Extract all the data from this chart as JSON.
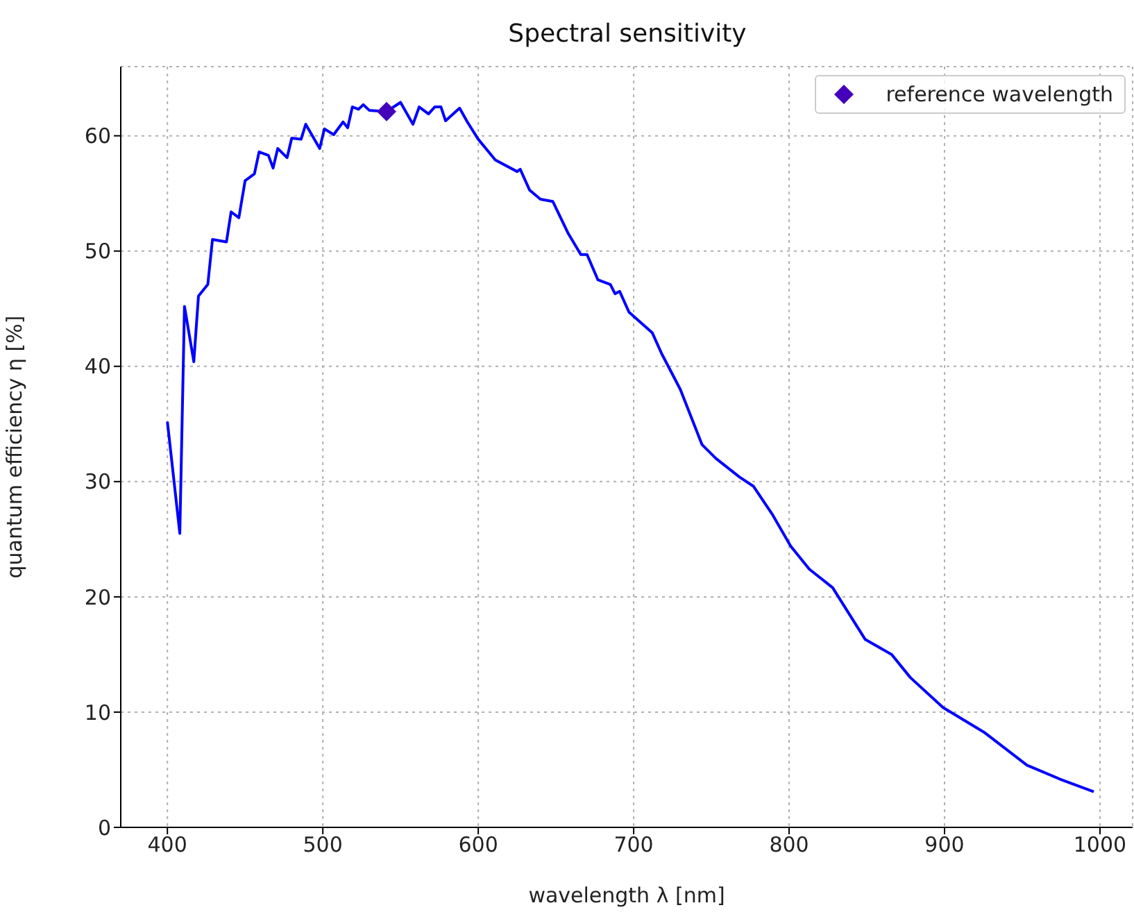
{
  "chart_data": {
    "type": "line",
    "title": "Spectral sensitivity",
    "xlabel": "wavelength λ [nm]",
    "ylabel": "quantum efficiency η [%]",
    "xlim": [
      370,
      1021
    ],
    "xticks": [
      400,
      500,
      600,
      700,
      800,
      900,
      1000
    ],
    "ylim": [
      0,
      66
    ],
    "yticks": [
      0,
      10,
      20,
      30,
      40,
      50,
      60
    ],
    "grid": true,
    "legend": "top right",
    "series": [
      {
        "color": "#0000ff",
        "marker": "none",
        "x": [
          400,
          408,
          411,
          417,
          420,
          426,
          429,
          438,
          441,
          446,
          450,
          456,
          459,
          465,
          468,
          471,
          477,
          480,
          486,
          489,
          498,
          501,
          507,
          513,
          516,
          519,
          523,
          526,
          530,
          541,
          550,
          558,
          562,
          568,
          572,
          576,
          579,
          588,
          593,
          600,
          611,
          625,
          627,
          633,
          640,
          648,
          658,
          666,
          670,
          677,
          685,
          688,
          691,
          697,
          712,
          718,
          730,
          744,
          753,
          768,
          777,
          789,
          801,
          813,
          828,
          849,
          866,
          878,
          899,
          926,
          953,
          974,
          996
        ],
        "values": [
          35.2,
          25.5,
          45.2,
          40.4,
          46.1,
          47.1,
          51.0,
          50.8,
          53.4,
          52.9,
          56.1,
          56.7,
          58.6,
          58.3,
          57.2,
          58.9,
          58.1,
          59.8,
          59.7,
          61.0,
          58.9,
          60.6,
          60.1,
          61.2,
          60.7,
          62.5,
          62.3,
          62.7,
          62.2,
          62.1,
          62.9,
          61.0,
          62.5,
          61.9,
          62.5,
          62.5,
          61.3,
          62.4,
          61.2,
          59.7,
          57.9,
          56.9,
          57.1,
          55.3,
          54.5,
          54.3,
          51.5,
          49.7,
          49.7,
          47.5,
          47.1,
          46.3,
          46.5,
          44.7,
          42.9,
          41.1,
          38.0,
          33.2,
          32.0,
          30.4,
          29.6,
          27.2,
          24.4,
          22.4,
          20.8,
          16.3,
          15.0,
          13.0,
          10.4,
          8.2,
          5.4,
          4.2,
          3.1
        ]
      },
      {
        "type": "scatter",
        "name": "reference wavelength",
        "color": "#4400bb",
        "marker": "diamond",
        "x": [
          541
        ],
        "values": [
          62.1
        ]
      }
    ]
  }
}
